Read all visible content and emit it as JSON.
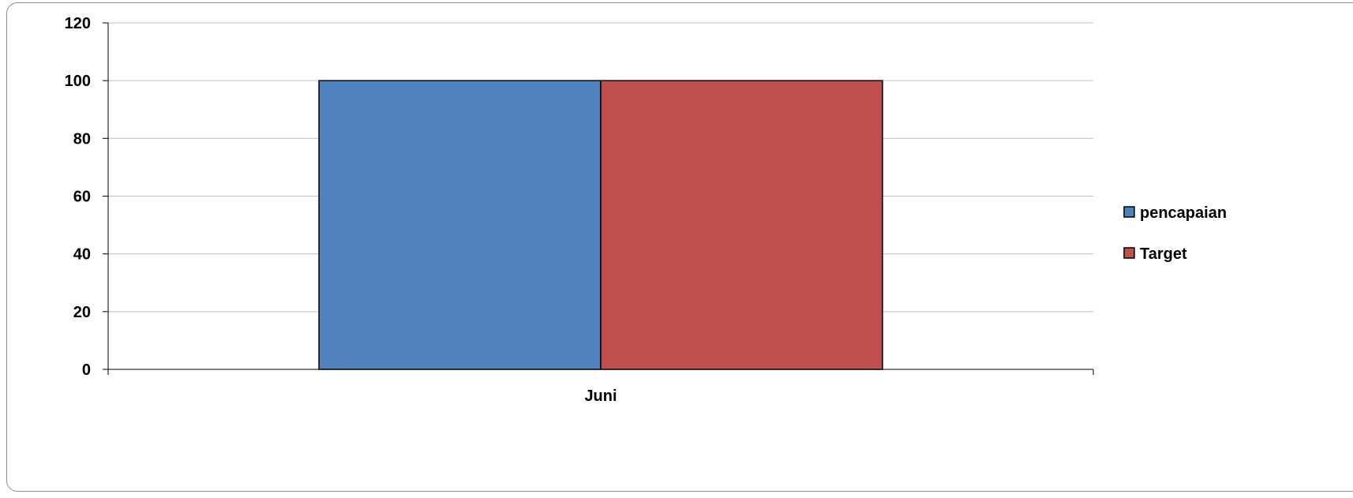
{
  "chart_data": {
    "type": "bar",
    "categories": [
      "Juni"
    ],
    "series": [
      {
        "name": "pencapaian",
        "values": [
          100
        ],
        "color": "#4f81bd"
      },
      {
        "name": "Target",
        "values": [
          100
        ],
        "color": "#c0504d"
      }
    ],
    "title": "",
    "xlabel": "",
    "ylabel": "",
    "ylim": [
      0,
      120
    ],
    "yticks": [
      0,
      20,
      40,
      60,
      80,
      100,
      120
    ],
    "grid": true,
    "legend_position": "right"
  }
}
